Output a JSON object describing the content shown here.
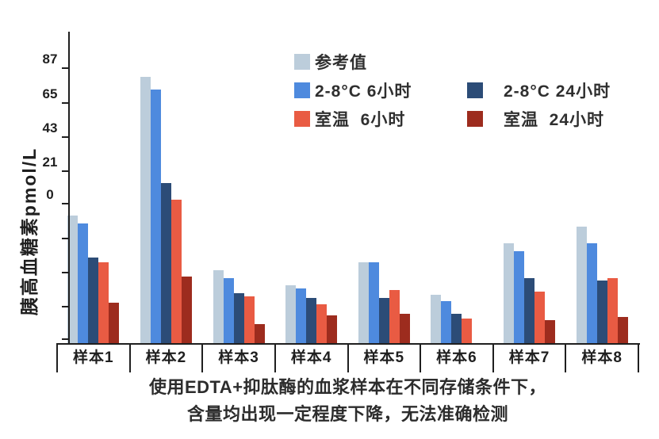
{
  "chart_data": {
    "type": "bar",
    "title": "",
    "ylabel": "胰高血糖素pmol/L",
    "xlabel": "",
    "categories": [
      "样本1",
      "样本2",
      "样本3",
      "样本4",
      "样本5",
      "样本6",
      "样本7",
      "样本8"
    ],
    "series": [
      {
        "name": "参考值",
        "color": "#bccddb",
        "values": [
          -13,
          76,
          -48,
          -58,
          -43,
          -64,
          -31,
          -20
        ]
      },
      {
        "name": "2-8°C 6小时",
        "color": "#4e8ade",
        "values": [
          -18,
          68,
          -53,
          -60,
          -43,
          -68,
          -36,
          -31
        ]
      },
      {
        "name": "2-8°C 24小时",
        "color": "#2c4c77",
        "values": [
          -40,
          8,
          -63,
          -66,
          -66,
          -76,
          -53,
          -55
        ]
      },
      {
        "name": "室温 6小时",
        "color": "#e95b43",
        "values": [
          -43,
          -3,
          -65,
          -70,
          -61,
          -79,
          -62,
          -53
        ]
      },
      {
        "name": "室温 24小时",
        "color": "#9d2c1e",
        "values": [
          -69,
          -52,
          -83,
          -77,
          -76,
          null,
          -80,
          -78
        ]
      }
    ],
    "ylim": [
      -95,
      105
    ],
    "yticks_labeled": [
      87,
      65,
      43,
      21,
      0
    ],
    "yticks_unlabeled": [
      -22,
      -44,
      -66,
      -88
    ],
    "bar_baseline": -95,
    "grid": false,
    "legend_position": "top-center"
  },
  "legend": {
    "items": [
      {
        "label": "参考值",
        "color": "#bccddb"
      },
      {
        "label": "2-8°C 6小时",
        "color": "#4e8ade"
      },
      {
        "label": "室温  6小时",
        "color": "#e95b43"
      },
      {
        "label": "2-8°C 24小时",
        "color": "#2c4c77"
      },
      {
        "label": "室温  24小时",
        "color": "#9d2c1e"
      }
    ]
  },
  "caption": {
    "line1": "使用EDTA+抑肽酶的血浆样本在不同存储条件下，",
    "line2": "含量均出现一定程度下降，无法准确检测"
  }
}
